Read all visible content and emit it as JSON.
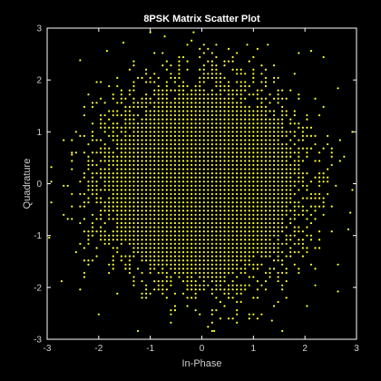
{
  "chart_data": {
    "type": "scatter",
    "title": "8PSK Matrix Scatter Plot",
    "xlabel": "In-Phase",
    "ylabel": "Quadrature",
    "xlim": [
      -3,
      3
    ],
    "ylim": [
      -3,
      3
    ],
    "xticks": [
      -3,
      -2,
      -1,
      0,
      1,
      2,
      3
    ],
    "yticks": [
      -3,
      -2,
      -1,
      0,
      1,
      2,
      3
    ],
    "grid": false,
    "colors": {
      "background": "#000000",
      "axes": "#ffffff",
      "text": "#cfcfcf",
      "marker": "#ffff33"
    },
    "series": [
      {
        "marker": "dot",
        "grid_step": 0.08,
        "core_radius": 1.72,
        "outer_radius": 3.0,
        "points": [
          [
            -2.36,
            2.38
          ],
          [
            -2.52,
            0.56
          ],
          [
            -2.92,
            0.32
          ],
          [
            -2.92,
            -0.36
          ],
          [
            2.92,
            1.0
          ],
          [
            2.88,
            -0.56
          ],
          [
            2.84,
            -0.88
          ],
          [
            -2.96,
            -1.04
          ],
          [
            2.36,
            2.44
          ],
          [
            -2.36,
            -2.04
          ],
          [
            2.64,
            1.84
          ],
          [
            1.28,
            2.68
          ],
          [
            0.88,
            2.68
          ],
          [
            -0.16,
            2.92
          ],
          [
            -0.72,
            2.84
          ],
          [
            -1.0,
            2.92
          ],
          [
            -1.84,
            2.56
          ],
          [
            2.12,
            2.56
          ],
          [
            1.56,
            -2.84
          ],
          [
            -1.24,
            -2.84
          ],
          [
            -2.0,
            -2.52
          ],
          [
            2.04,
            -2.36
          ],
          [
            2.64,
            -2.08
          ],
          [
            2.64,
            -1.56
          ],
          [
            -2.72,
            -1.88
          ],
          [
            -0.6,
            -2.68
          ],
          [
            0.24,
            -2.84
          ],
          [
            1.36,
            -2.64
          ],
          [
            -1.52,
            2.72
          ],
          [
            1.88,
            2.52
          ]
        ]
      }
    ]
  }
}
